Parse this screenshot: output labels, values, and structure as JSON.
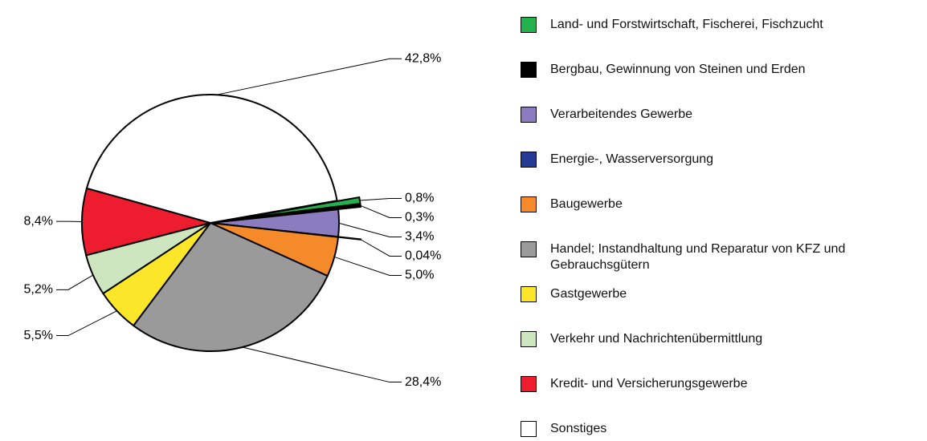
{
  "chart_data": {
    "type": "pie",
    "categories": [
      "Land- und Forstwirtschaft, Fischerei, Fischzucht",
      "Bergbau, Gewinnung von Steinen und Erden",
      "Verarbeitendes Gewerbe",
      "Energie-, Wasserversorgung",
      "Baugewerbe",
      "Handel; Instandhaltung und Reparatur von KFZ und Gebrauchsgütern",
      "Gastgewerbe",
      "Verkehr und Nachrichtenübermittlung",
      "Kredit- und Versicherungsgewerbe",
      "Sonstiges"
    ],
    "values": [
      0.8,
      0.3,
      3.4,
      0.04,
      5.0,
      28.4,
      5.5,
      5.2,
      8.4,
      42.8
    ],
    "value_labels": [
      "0,8%",
      "0,3%",
      "3,4%",
      "0,04%",
      "5,0%",
      "28,4%",
      "5,5%",
      "5,2%",
      "8,4%",
      "42,8%"
    ],
    "colors": [
      "#22b14c",
      "#000000",
      "#8b7bbf",
      "#243a94",
      "#f58a2b",
      "#9a9a9a",
      "#fce62a",
      "#cde6c0",
      "#ed1c2e",
      "#ffffff"
    ],
    "legend": "right"
  }
}
